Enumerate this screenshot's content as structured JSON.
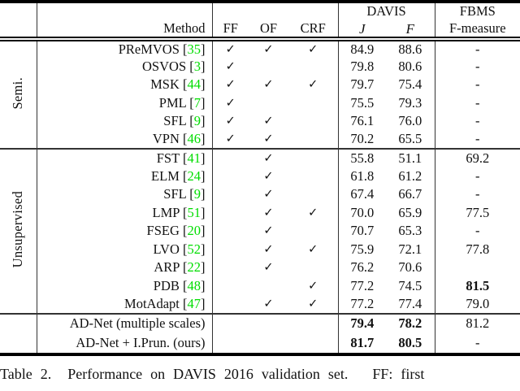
{
  "table": {
    "header": {
      "davis": "DAVIS",
      "fbms_line1": "FBMS",
      "fbms_line2": "F-measure",
      "method": "Method",
      "ff": "FF",
      "of": "OF",
      "crf": "CRF",
      "j": "J",
      "f": "F"
    },
    "check_glyph": "✓",
    "groups": [
      {
        "label": "Semi.",
        "rows": [
          {
            "method": "PReMVOS",
            "cite": "35",
            "ff": true,
            "of": true,
            "crf": true,
            "j": "84.9",
            "f": "88.6",
            "fbms": "-",
            "bold": []
          },
          {
            "method": "OSVOS",
            "cite": "3",
            "ff": true,
            "of": false,
            "crf": false,
            "j": "79.8",
            "f": "80.6",
            "fbms": "-",
            "bold": []
          },
          {
            "method": "MSK",
            "cite": "44",
            "ff": true,
            "of": true,
            "crf": true,
            "j": "79.7",
            "f": "75.4",
            "fbms": "-",
            "bold": []
          },
          {
            "method": "PML",
            "cite": "7",
            "ff": true,
            "of": false,
            "crf": false,
            "j": "75.5",
            "f": "79.3",
            "fbms": "-",
            "bold": []
          },
          {
            "method": "SFL",
            "cite": "9",
            "ff": true,
            "of": true,
            "crf": false,
            "j": "76.1",
            "f": "76.0",
            "fbms": "-",
            "bold": []
          },
          {
            "method": "VPN",
            "cite": "46",
            "ff": true,
            "of": true,
            "crf": false,
            "j": "70.2",
            "f": "65.5",
            "fbms": "-",
            "bold": []
          }
        ]
      },
      {
        "label": "Unsupervised",
        "rows": [
          {
            "method": "FST",
            "cite": "41",
            "ff": false,
            "of": true,
            "crf": false,
            "j": "55.8",
            "f": "51.1",
            "fbms": "69.2",
            "bold": []
          },
          {
            "method": "ELM",
            "cite": "24",
            "ff": false,
            "of": true,
            "crf": false,
            "j": "61.8",
            "f": "61.2",
            "fbms": "-",
            "bold": []
          },
          {
            "method": "SFL",
            "cite": "9",
            "ff": false,
            "of": true,
            "crf": false,
            "j": "67.4",
            "f": "66.7",
            "fbms": "-",
            "bold": []
          },
          {
            "method": "LMP",
            "cite": "51",
            "ff": false,
            "of": true,
            "crf": true,
            "j": "70.0",
            "f": "65.9",
            "fbms": "77.5",
            "bold": []
          },
          {
            "method": "FSEG",
            "cite": "20",
            "ff": false,
            "of": true,
            "crf": false,
            "j": "70.7",
            "f": "65.3",
            "fbms": "-",
            "bold": []
          },
          {
            "method": "LVO",
            "cite": "52",
            "ff": false,
            "of": true,
            "crf": true,
            "j": "75.9",
            "f": "72.1",
            "fbms": "77.8",
            "bold": []
          },
          {
            "method": "ARP",
            "cite": "22",
            "ff": false,
            "of": true,
            "crf": false,
            "j": "76.2",
            "f": "70.6",
            "fbms": "",
            "bold": []
          },
          {
            "method": "PDB",
            "cite": "48",
            "ff": false,
            "of": false,
            "crf": true,
            "j": "77.2",
            "f": "74.5",
            "fbms": "81.5",
            "bold": [
              "fbms"
            ]
          },
          {
            "method": "MotAdapt",
            "cite": "47",
            "ff": false,
            "of": true,
            "crf": true,
            "j": "77.2",
            "f": "77.4",
            "fbms": "79.0",
            "bold": []
          }
        ]
      },
      {
        "label": "",
        "rows": [
          {
            "method": "AD-Net (multiple scales)",
            "cite": "",
            "ff": false,
            "of": false,
            "crf": false,
            "j": "79.4",
            "f": "78.2",
            "fbms": "81.2",
            "bold": [
              "j",
              "f"
            ]
          },
          {
            "method": "AD-Net + I.Prun. (ours)",
            "cite": "",
            "ff": false,
            "of": false,
            "crf": false,
            "j": "81.7",
            "f": "80.5",
            "fbms": "-",
            "bold": [
              "j",
              "f"
            ]
          }
        ]
      }
    ]
  },
  "caption": "Table 2.  Performance on DAVIS 2016 validation set.   FF: first",
  "colors": {
    "citation": "#00dd00"
  }
}
